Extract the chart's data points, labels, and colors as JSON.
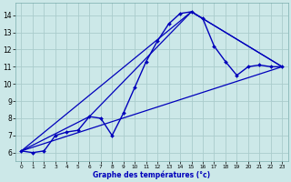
{
  "xlabel": "Graphe des températures (°c)",
  "background_color": "#cce8e8",
  "grid_color": "#aacccc",
  "line_color": "#0000bb",
  "xlim": [
    -0.5,
    23.5
  ],
  "ylim": [
    5.5,
    14.7
  ],
  "yticks": [
    6,
    7,
    8,
    9,
    10,
    11,
    12,
    13,
    14
  ],
  "xticks": [
    0,
    1,
    2,
    3,
    4,
    5,
    6,
    7,
    8,
    9,
    10,
    11,
    12,
    13,
    14,
    15,
    16,
    17,
    18,
    19,
    20,
    21,
    22,
    23
  ],
  "series": [
    {
      "x": [
        0,
        1,
        2,
        3,
        4,
        5,
        6,
        7,
        8,
        9,
        10,
        11,
        12,
        13,
        14,
        15,
        16,
        17,
        18,
        19,
        20,
        21,
        22,
        23
      ],
      "y": [
        6.1,
        6.0,
        6.1,
        7.0,
        7.2,
        7.3,
        8.1,
        8.0,
        7.0,
        8.3,
        9.8,
        11.3,
        12.5,
        13.5,
        14.1,
        14.2,
        13.8,
        12.2,
        11.3,
        10.5,
        11.0,
        11.1,
        11.0,
        11.0
      ],
      "marker": "D",
      "markersize": 2.0,
      "linewidth": 1.0
    },
    {
      "x": [
        0,
        23
      ],
      "y": [
        6.1,
        11.0
      ],
      "marker": null,
      "markersize": 0,
      "linewidth": 0.9
    },
    {
      "x": [
        0,
        15,
        23
      ],
      "y": [
        6.1,
        14.2,
        11.0
      ],
      "marker": null,
      "markersize": 0,
      "linewidth": 0.9
    },
    {
      "x": [
        0,
        6,
        15,
        23
      ],
      "y": [
        6.1,
        8.1,
        14.2,
        11.0
      ],
      "marker": null,
      "markersize": 0,
      "linewidth": 0.9
    }
  ]
}
